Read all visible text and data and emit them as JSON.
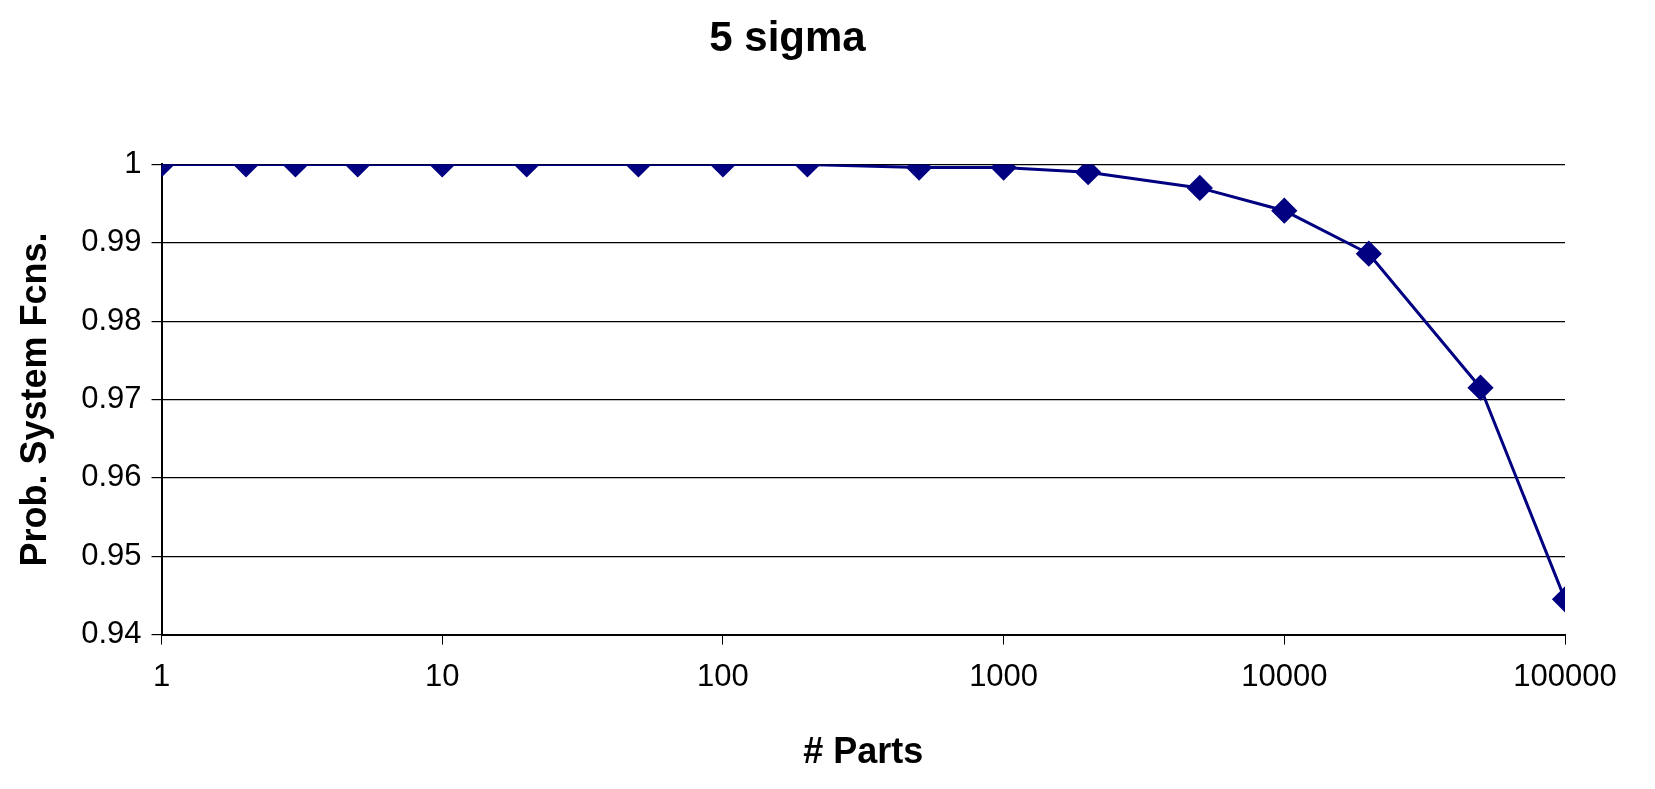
{
  "chart_data": {
    "type": "line",
    "title": "5 sigma",
    "xlabel": "# Parts",
    "ylabel": "Prob. System Fcns.",
    "x": [
      1,
      2,
      3,
      5,
      10,
      20,
      50,
      100,
      200,
      500,
      1000,
      2000,
      5000,
      10000,
      20000,
      50000,
      100000
    ],
    "series": [
      {
        "color": "#000080",
        "values": [
          1,
          1,
          1,
          1,
          1,
          1,
          1,
          1,
          1,
          0.9996,
          0.9996,
          0.999,
          0.997,
          0.9941,
          0.9886,
          0.9715,
          0.9445
        ]
      }
    ],
    "log": "x",
    "xlim": [
      1,
      100000
    ],
    "xticks": [
      1,
      10,
      100,
      1000,
      10000,
      100000
    ],
    "ylim": [
      0.94,
      1
    ],
    "yticks": [
      0.94,
      0.95,
      0.96,
      0.97,
      0.98,
      0.99,
      1
    ],
    "grid": "y",
    "legend": false,
    "marker": "diamond",
    "line_style": "solid"
  }
}
